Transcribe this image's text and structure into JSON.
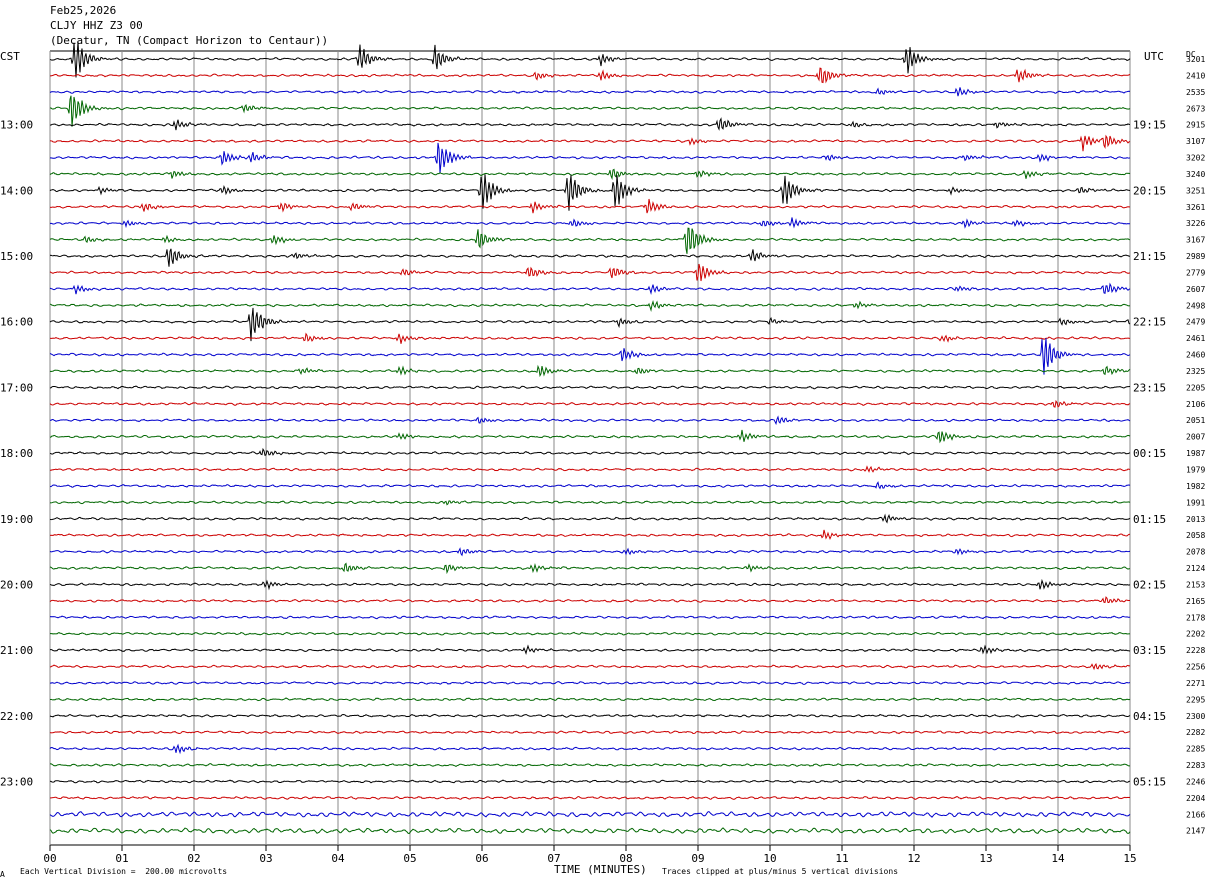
{
  "header": {
    "date": "Feb25,2026",
    "station": "CLJY HHZ Z3 00",
    "location": "(Decatur, TN (Compact Horizon to Centaur))"
  },
  "left_axis_label": "CST",
  "right_axis_label": "UTC",
  "dc_header": "DC",
  "footer": {
    "scale": "Each Vertical Division =  200.00 microvolts",
    "time_label": "TIME (MINUTES)",
    "clip_note": "Traces clipped at plus/minus 5 vertical divisions",
    "logo_mark": "A"
  },
  "colors": {
    "trace_cycle": [
      "#000000",
      "#cc0000",
      "#0000cc",
      "#006600"
    ],
    "grid": "#8a8a8a"
  },
  "chart_data": {
    "type": "line",
    "title": "CLJY HHZ Z3 00",
    "xlabel": "TIME (MINUTES)",
    "x_ticks": [
      "00",
      "01",
      "02",
      "03",
      "04",
      "05",
      "06",
      "07",
      "08",
      "09",
      "10",
      "11",
      "12",
      "13",
      "14",
      "15"
    ],
    "xlim": [
      0,
      15
    ],
    "left_hour_labels": [
      "13:00",
      "14:00",
      "15:00",
      "16:00",
      "17:00",
      "18:00",
      "19:00",
      "20:00",
      "21:00",
      "22:00",
      "23:00"
    ],
    "right_hour_labels": [
      "19:15",
      "20:15",
      "21:15",
      "22:15",
      "23:15",
      "00:15",
      "01:15",
      "02:15",
      "03:15",
      "04:15",
      "05:15"
    ],
    "trace_count": 48,
    "dc_offsets": [
      3201,
      2410,
      2535,
      2673,
      2915,
      3107,
      3202,
      3240,
      3251,
      3261,
      3226,
      3167,
      2989,
      2779,
      2607,
      2498,
      2479,
      2461,
      2460,
      2325,
      2205,
      2106,
      2051,
      2007,
      1987,
      1979,
      1982,
      1991,
      2013,
      2058,
      2078,
      2124,
      2153,
      2165,
      2178,
      2202,
      2228,
      2256,
      2271,
      2295,
      2300,
      2282,
      2285,
      2283,
      2246,
      2204,
      2166,
      2147
    ],
    "events": [
      {
        "trace": 0,
        "minute": 0.35,
        "amp": 26
      },
      {
        "trace": 0,
        "minute": 4.3,
        "amp": 18
      },
      {
        "trace": 0,
        "minute": 5.35,
        "amp": 16
      },
      {
        "trace": 0,
        "minute": 7.65,
        "amp": 7
      },
      {
        "trace": 0,
        "minute": 11.9,
        "amp": 18
      },
      {
        "trace": 1,
        "minute": 6.75,
        "amp": 5
      },
      {
        "trace": 1,
        "minute": 7.65,
        "amp": 6
      },
      {
        "trace": 1,
        "minute": 10.7,
        "amp": 14
      },
      {
        "trace": 1,
        "minute": 13.45,
        "amp": 9
      },
      {
        "trace": 2,
        "minute": 11.5,
        "amp": 4
      },
      {
        "trace": 2,
        "minute": 12.6,
        "amp": 6
      },
      {
        "trace": 3,
        "minute": 0.3,
        "amp": 26
      },
      {
        "trace": 3,
        "minute": 2.7,
        "amp": 5
      },
      {
        "trace": 4,
        "minute": 1.75,
        "amp": 6
      },
      {
        "trace": 4,
        "minute": 9.3,
        "amp": 10
      },
      {
        "trace": 4,
        "minute": 11.15,
        "amp": 4
      },
      {
        "trace": 4,
        "minute": 13.15,
        "amp": 4
      },
      {
        "trace": 5,
        "minute": 14.35,
        "amp": 10
      },
      {
        "trace": 5,
        "minute": 14.65,
        "amp": 10
      },
      {
        "trace": 5,
        "minute": 8.9,
        "amp": 4
      },
      {
        "trace": 6,
        "minute": 2.4,
        "amp": 9
      },
      {
        "trace": 6,
        "minute": 2.8,
        "amp": 7
      },
      {
        "trace": 6,
        "minute": 5.4,
        "amp": 22
      },
      {
        "trace": 6,
        "minute": 10.8,
        "amp": 4
      },
      {
        "trace": 6,
        "minute": 12.7,
        "amp": 4
      },
      {
        "trace": 6,
        "minute": 13.75,
        "amp": 5
      },
      {
        "trace": 7,
        "minute": 1.7,
        "amp": 5
      },
      {
        "trace": 7,
        "minute": 7.8,
        "amp": 7
      },
      {
        "trace": 7,
        "minute": 9.0,
        "amp": 5
      },
      {
        "trace": 7,
        "minute": 13.55,
        "amp": 5
      },
      {
        "trace": 8,
        "minute": 0.7,
        "amp": 4
      },
      {
        "trace": 8,
        "minute": 2.4,
        "amp": 5
      },
      {
        "trace": 8,
        "minute": 6.0,
        "amp": 26
      },
      {
        "trace": 8,
        "minute": 7.2,
        "amp": 26
      },
      {
        "trace": 8,
        "minute": 7.85,
        "amp": 22
      },
      {
        "trace": 8,
        "minute": 10.2,
        "amp": 20
      },
      {
        "trace": 8,
        "minute": 12.5,
        "amp": 4
      },
      {
        "trace": 8,
        "minute": 14.3,
        "amp": 5
      },
      {
        "trace": 9,
        "minute": 1.3,
        "amp": 6
      },
      {
        "trace": 9,
        "minute": 3.2,
        "amp": 6
      },
      {
        "trace": 9,
        "minute": 4.2,
        "amp": 5
      },
      {
        "trace": 9,
        "minute": 6.7,
        "amp": 7
      },
      {
        "trace": 9,
        "minute": 8.3,
        "amp": 10
      },
      {
        "trace": 10,
        "minute": 1.05,
        "amp": 4
      },
      {
        "trace": 10,
        "minute": 7.25,
        "amp": 5
      },
      {
        "trace": 10,
        "minute": 9.9,
        "amp": 5
      },
      {
        "trace": 10,
        "minute": 10.3,
        "amp": 6
      },
      {
        "trace": 10,
        "minute": 12.7,
        "amp": 5
      },
      {
        "trace": 10,
        "minute": 13.4,
        "amp": 4
      },
      {
        "trace": 11,
        "minute": 0.5,
        "amp": 4
      },
      {
        "trace": 11,
        "minute": 1.6,
        "amp": 4
      },
      {
        "trace": 11,
        "minute": 3.1,
        "amp": 6
      },
      {
        "trace": 11,
        "minute": 5.95,
        "amp": 14
      },
      {
        "trace": 11,
        "minute": 8.85,
        "amp": 26
      },
      {
        "trace": 12,
        "minute": 1.65,
        "amp": 14
      },
      {
        "trace": 12,
        "minute": 3.4,
        "amp": 4
      },
      {
        "trace": 12,
        "minute": 9.75,
        "amp": 8
      },
      {
        "trace": 13,
        "minute": 4.9,
        "amp": 5
      },
      {
        "trace": 13,
        "minute": 6.65,
        "amp": 8
      },
      {
        "trace": 13,
        "minute": 7.8,
        "amp": 9
      },
      {
        "trace": 13,
        "minute": 9.0,
        "amp": 14
      },
      {
        "trace": 14,
        "minute": 0.35,
        "amp": 5
      },
      {
        "trace": 14,
        "minute": 8.35,
        "amp": 6
      },
      {
        "trace": 14,
        "minute": 12.6,
        "amp": 4
      },
      {
        "trace": 14,
        "minute": 14.65,
        "amp": 9
      },
      {
        "trace": 15,
        "minute": 8.35,
        "amp": 6
      },
      {
        "trace": 15,
        "minute": 11.2,
        "amp": 4
      },
      {
        "trace": 16,
        "minute": 2.8,
        "amp": 26
      },
      {
        "trace": 16,
        "minute": 7.9,
        "amp": 5
      },
      {
        "trace": 16,
        "minute": 10.0,
        "amp": 4
      },
      {
        "trace": 16,
        "minute": 14.05,
        "amp": 5
      },
      {
        "trace": 16,
        "minute": 15.0,
        "amp": 5
      },
      {
        "trace": 17,
        "minute": 3.55,
        "amp": 6
      },
      {
        "trace": 17,
        "minute": 4.85,
        "amp": 6
      },
      {
        "trace": 17,
        "minute": 12.4,
        "amp": 5
      },
      {
        "trace": 18,
        "minute": 7.95,
        "amp": 9
      },
      {
        "trace": 18,
        "minute": 13.8,
        "amp": 26
      },
      {
        "trace": 19,
        "minute": 3.5,
        "amp": 4
      },
      {
        "trace": 19,
        "minute": 4.85,
        "amp": 5
      },
      {
        "trace": 19,
        "minute": 6.8,
        "amp": 8
      },
      {
        "trace": 19,
        "minute": 8.15,
        "amp": 5
      },
      {
        "trace": 19,
        "minute": 14.65,
        "amp": 6
      },
      {
        "trace": 21,
        "minute": 13.95,
        "amp": 5
      },
      {
        "trace": 22,
        "minute": 5.95,
        "amp": 4
      },
      {
        "trace": 22,
        "minute": 10.1,
        "amp": 5
      },
      {
        "trace": 23,
        "minute": 4.85,
        "amp": 4
      },
      {
        "trace": 23,
        "minute": 9.6,
        "amp": 7
      },
      {
        "trace": 23,
        "minute": 12.35,
        "amp": 9
      },
      {
        "trace": 24,
        "minute": 2.95,
        "amp": 6
      },
      {
        "trace": 25,
        "minute": 11.35,
        "amp": 4
      },
      {
        "trace": 26,
        "minute": 11.5,
        "amp": 4
      },
      {
        "trace": 27,
        "minute": 5.5,
        "amp": 3
      },
      {
        "trace": 28,
        "minute": 11.6,
        "amp": 5
      },
      {
        "trace": 29,
        "minute": 10.75,
        "amp": 6
      },
      {
        "trace": 30,
        "minute": 5.7,
        "amp": 5
      },
      {
        "trace": 30,
        "minute": 8.0,
        "amp": 4
      },
      {
        "trace": 30,
        "minute": 12.6,
        "amp": 4
      },
      {
        "trace": 31,
        "minute": 4.1,
        "amp": 6
      },
      {
        "trace": 31,
        "minute": 5.5,
        "amp": 6
      },
      {
        "trace": 31,
        "minute": 6.7,
        "amp": 5
      },
      {
        "trace": 31,
        "minute": 9.7,
        "amp": 4
      },
      {
        "trace": 32,
        "minute": 3.0,
        "amp": 5
      },
      {
        "trace": 32,
        "minute": 13.75,
        "amp": 6
      },
      {
        "trace": 33,
        "minute": 14.65,
        "amp": 5
      },
      {
        "trace": 36,
        "minute": 6.6,
        "amp": 4
      },
      {
        "trace": 36,
        "minute": 12.95,
        "amp": 6
      },
      {
        "trace": 37,
        "minute": 14.5,
        "amp": 4
      },
      {
        "trace": 42,
        "minute": 1.75,
        "amp": 6
      }
    ]
  }
}
